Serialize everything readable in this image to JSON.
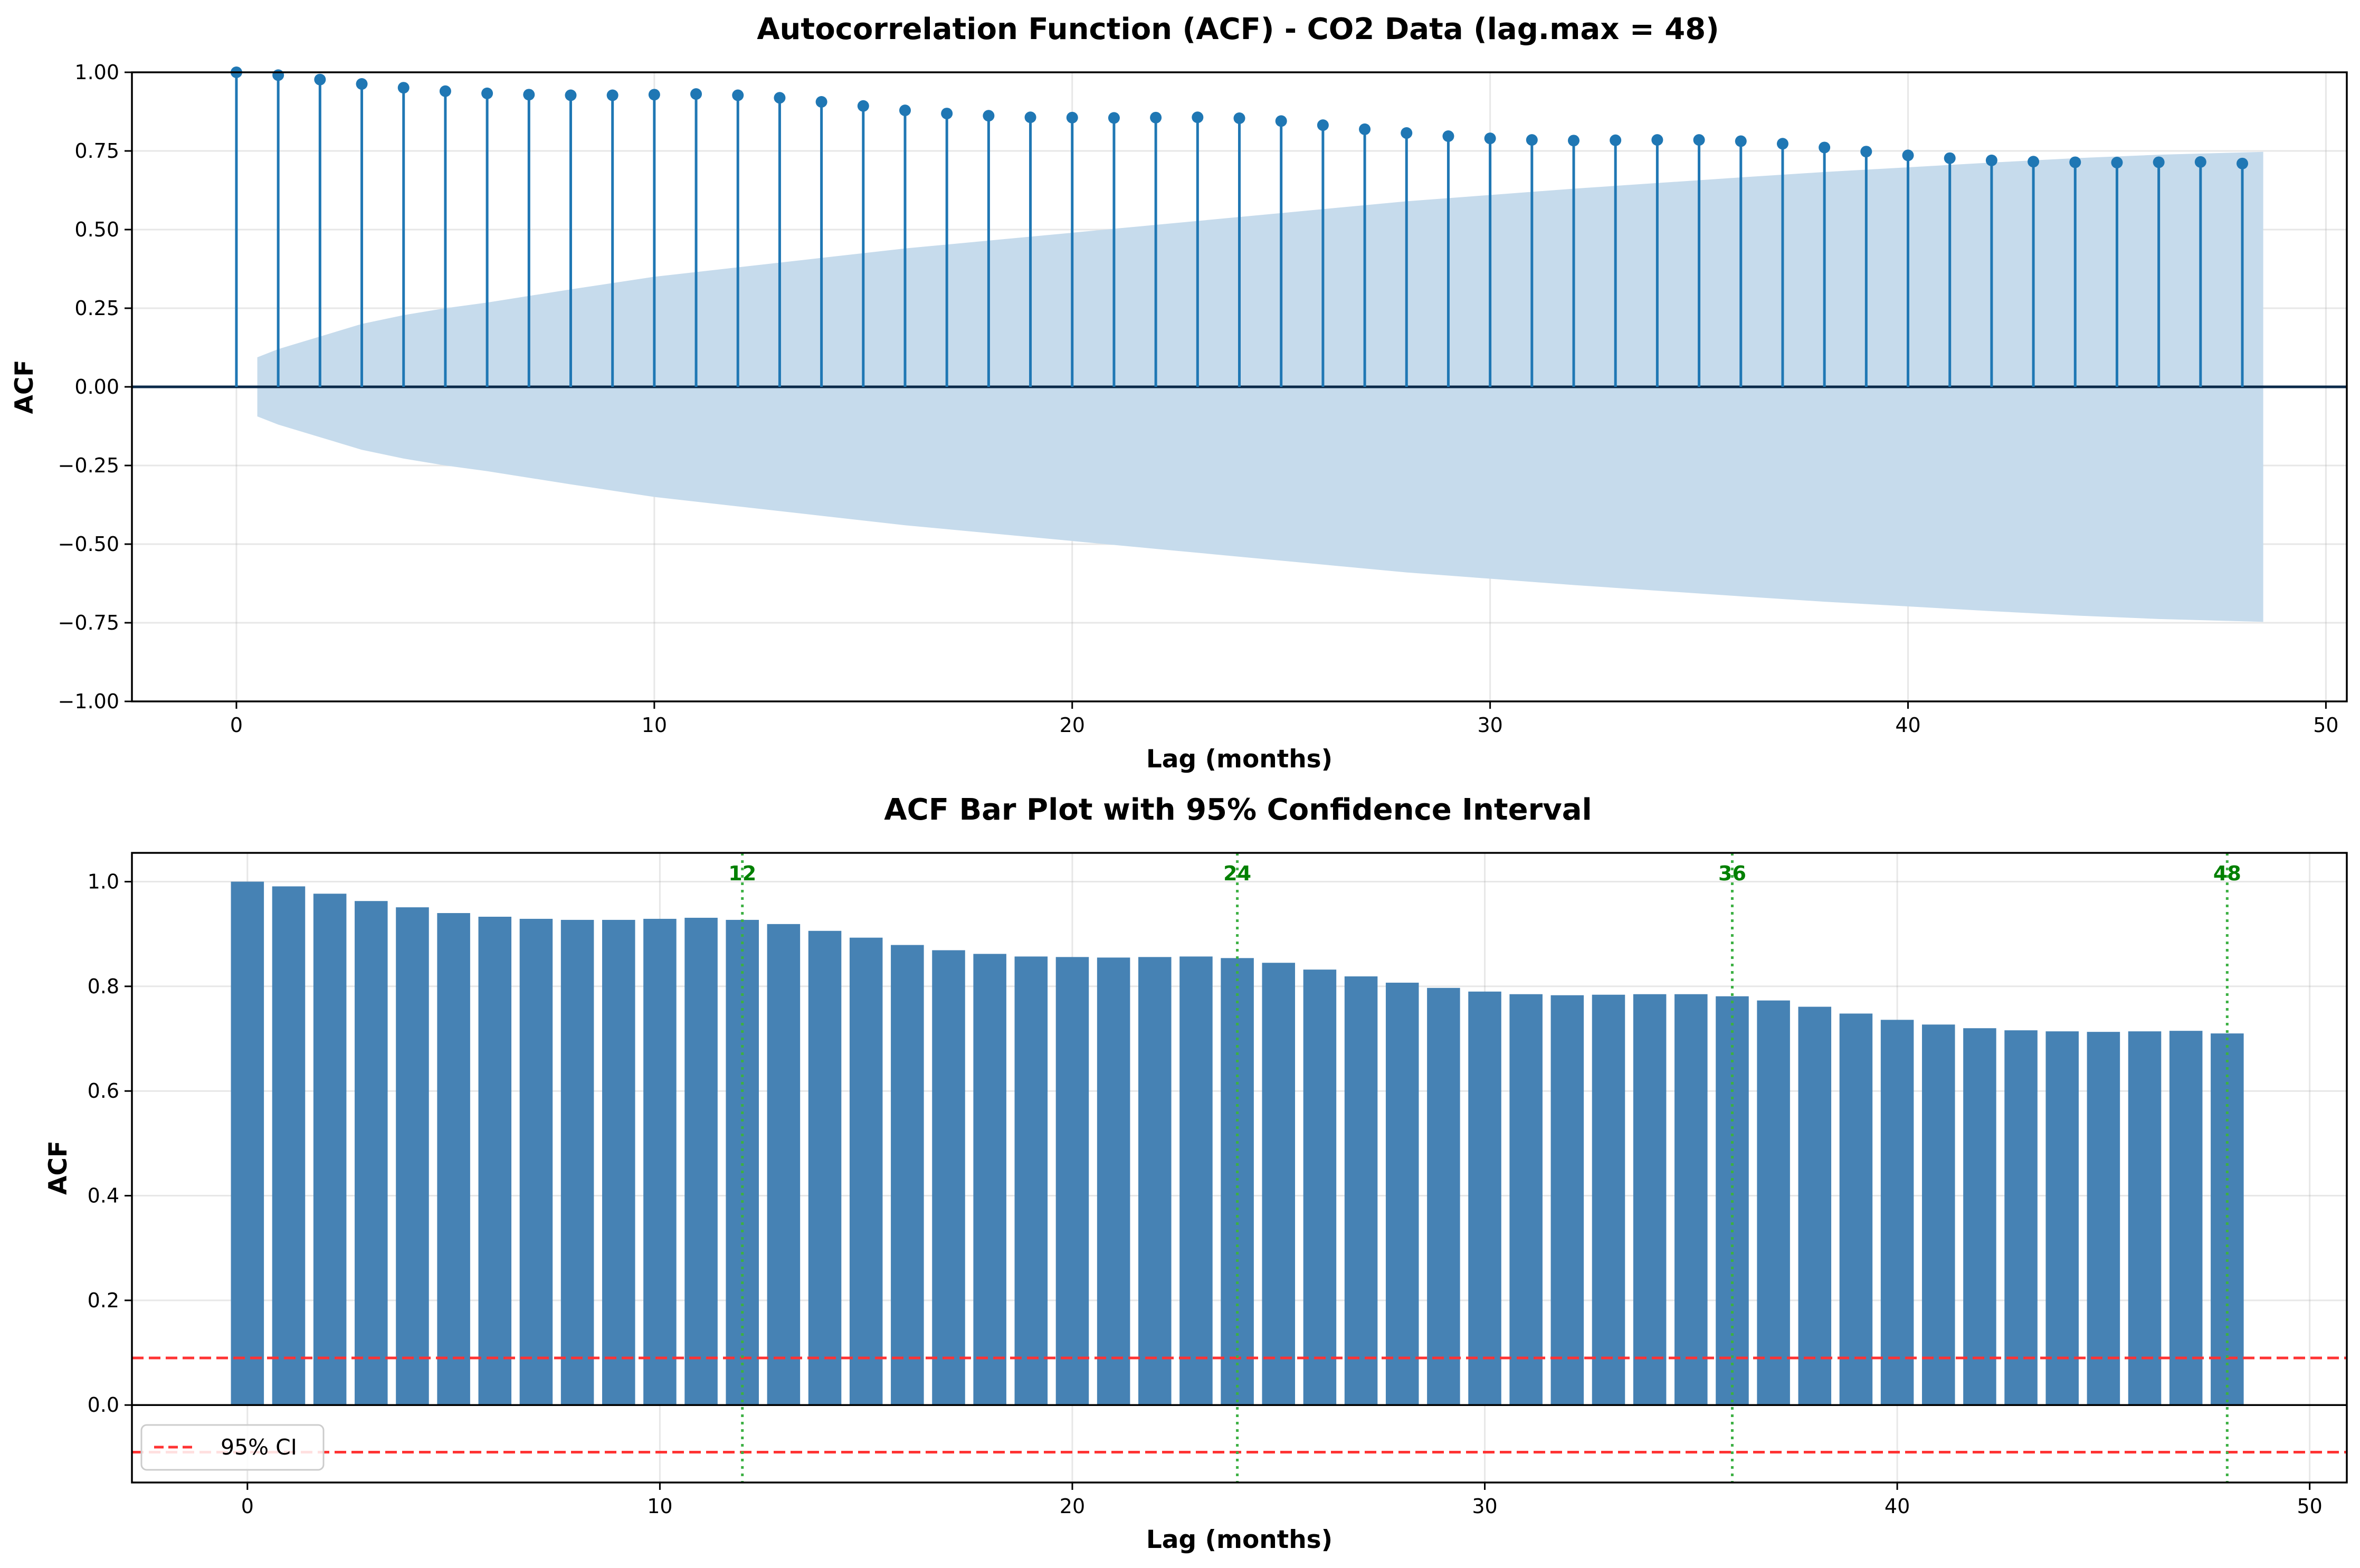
{
  "chart_data": [
    {
      "type": "stem",
      "title": "Autocorrelation Function (ACF) - CO2 Data (lag.max = 48)",
      "xlabel": "Lag (months)",
      "ylabel": "ACF",
      "xlim": [
        -2.5,
        50.5
      ],
      "ylim": [
        -1.0,
        1.0
      ],
      "xticks": [
        0,
        10,
        20,
        30,
        40,
        50
      ],
      "yticks": [
        -1.0,
        -0.75,
        -0.5,
        -0.25,
        0.0,
        0.25,
        0.5,
        0.75,
        1.0
      ],
      "ytick_labels": [
        "−1.00",
        "−0.75",
        "−0.50",
        "−0.25",
        "0.00",
        "0.25",
        "0.50",
        "0.75",
        "1.00"
      ],
      "grid": true,
      "colors": {
        "stem": "#1f77b4",
        "band": "#c6dbec",
        "zero": "#0b2a4a"
      },
      "lags": [
        0,
        1,
        2,
        3,
        4,
        5,
        6,
        7,
        8,
        9,
        10,
        11,
        12,
        13,
        14,
        15,
        16,
        17,
        18,
        19,
        20,
        21,
        22,
        23,
        24,
        25,
        26,
        27,
        28,
        29,
        30,
        31,
        32,
        33,
        34,
        35,
        36,
        37,
        38,
        39,
        40,
        41,
        42,
        43,
        44,
        45,
        46,
        47,
        48
      ],
      "acf": [
        1.0,
        0.991,
        0.977,
        0.963,
        0.951,
        0.94,
        0.933,
        0.929,
        0.927,
        0.927,
        0.929,
        0.931,
        0.927,
        0.919,
        0.906,
        0.893,
        0.879,
        0.869,
        0.862,
        0.857,
        0.856,
        0.855,
        0.856,
        0.857,
        0.854,
        0.845,
        0.832,
        0.819,
        0.807,
        0.797,
        0.79,
        0.785,
        0.783,
        0.784,
        0.785,
        0.785,
        0.781,
        0.773,
        0.761,
        0.748,
        0.736,
        0.727,
        0.72,
        0.716,
        0.714,
        0.713,
        0.714,
        0.715,
        0.71
      ],
      "confidence_band": {
        "x": [
          0.5,
          1,
          2,
          3,
          4,
          5,
          6,
          8,
          10,
          12,
          14,
          16,
          18,
          20,
          22,
          24,
          26,
          28,
          30,
          32,
          34,
          36,
          38,
          40,
          42,
          44,
          46,
          48.5
        ],
        "upper": [
          0.094,
          0.12,
          0.16,
          0.2,
          0.228,
          0.25,
          0.268,
          0.31,
          0.35,
          0.38,
          0.41,
          0.44,
          0.465,
          0.49,
          0.515,
          0.54,
          0.565,
          0.59,
          0.61,
          0.63,
          0.648,
          0.666,
          0.683,
          0.698,
          0.713,
          0.727,
          0.738,
          0.747
        ]
      }
    },
    {
      "type": "bar",
      "title": "ACF Bar Plot with 95% Confidence Interval",
      "xlabel": "Lag (months)",
      "ylabel": "ACF",
      "xlim": [
        -2.8,
        50.9
      ],
      "ylim": [
        -0.148,
        1.055
      ],
      "xticks": [
        0,
        10,
        20,
        30,
        40,
        50
      ],
      "yticks": [
        0.0,
        0.2,
        0.4,
        0.6,
        0.8,
        1.0
      ],
      "ytick_labels": [
        "0.0",
        "0.2",
        "0.4",
        "0.6",
        "0.8",
        "1.0"
      ],
      "grid": true,
      "colors": {
        "bar": "#4682b4",
        "ci": "#ff3333",
        "seasonal": "#3cb043",
        "annotation": "#008000"
      },
      "categories": [
        0,
        1,
        2,
        3,
        4,
        5,
        6,
        7,
        8,
        9,
        10,
        11,
        12,
        13,
        14,
        15,
        16,
        17,
        18,
        19,
        20,
        21,
        22,
        23,
        24,
        25,
        26,
        27,
        28,
        29,
        30,
        31,
        32,
        33,
        34,
        35,
        36,
        37,
        38,
        39,
        40,
        41,
        42,
        43,
        44,
        45,
        46,
        47,
        48
      ],
      "values": [
        1.0,
        0.991,
        0.977,
        0.963,
        0.951,
        0.94,
        0.933,
        0.929,
        0.927,
        0.927,
        0.929,
        0.931,
        0.927,
        0.919,
        0.906,
        0.893,
        0.879,
        0.869,
        0.862,
        0.857,
        0.856,
        0.855,
        0.856,
        0.857,
        0.854,
        0.845,
        0.832,
        0.819,
        0.807,
        0.797,
        0.79,
        0.785,
        0.783,
        0.784,
        0.785,
        0.785,
        0.781,
        0.773,
        0.761,
        0.748,
        0.736,
        0.727,
        0.72,
        0.716,
        0.714,
        0.713,
        0.714,
        0.715,
        0.71
      ],
      "ci": [
        0.09,
        -0.09
      ],
      "seasonal_lags": [
        12,
        24,
        36,
        48
      ],
      "seasonal_labels": [
        "12",
        "24",
        "36",
        "48"
      ],
      "legend": {
        "label": "95% CI",
        "position": "lower-left"
      }
    }
  ]
}
